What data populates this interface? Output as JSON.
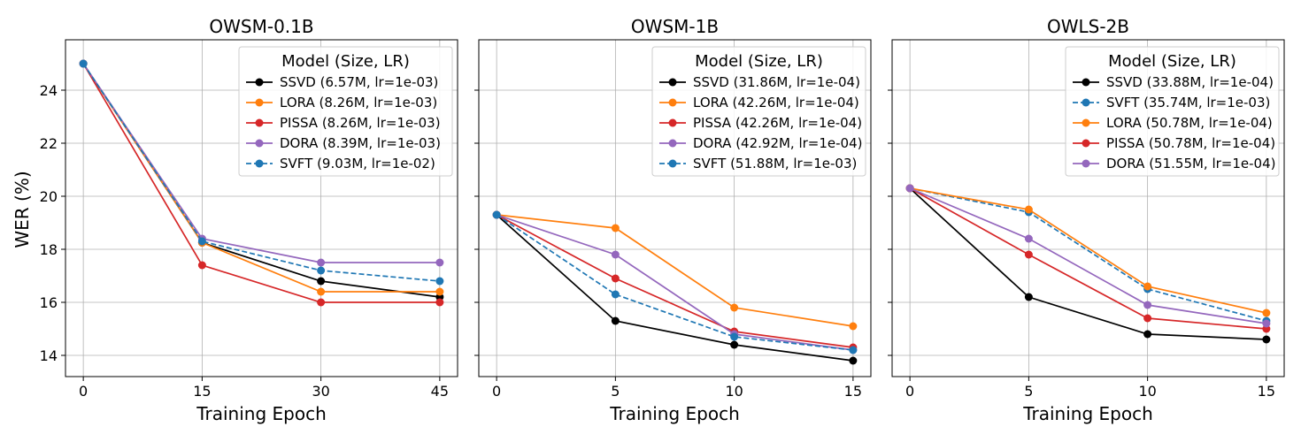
{
  "figure": {
    "ylabel": "WER (%)",
    "xlabel": "Training Epoch"
  },
  "chart_data": [
    {
      "type": "line",
      "title": "OWSM-0.1B",
      "xlabel": "Training Epoch",
      "ylabel": "WER (%)",
      "x": [
        0,
        15,
        30,
        45
      ],
      "xticks": [
        "0",
        "15",
        "30",
        "45"
      ],
      "xlim": [
        -2.25,
        47.25
      ],
      "ylim": [
        13.2,
        25.9
      ],
      "yticks": [
        "14",
        "16",
        "18",
        "20",
        "22",
        "24"
      ],
      "grid": true,
      "legend": {
        "title": "Model (Size, LR)",
        "placement": "top-right"
      },
      "series": [
        {
          "name": "SSVD (6.57M, lr=1e-03)",
          "color": "#000000",
          "dashed": false,
          "values": [
            25.0,
            18.25,
            16.8,
            16.2
          ]
        },
        {
          "name": "LORA (8.26M, lr=1e-03)",
          "color": "#ff7f0e",
          "dashed": false,
          "values": [
            25.0,
            18.25,
            16.4,
            16.4
          ]
        },
        {
          "name": "PISSA (8.26M, lr=1e-03)",
          "color": "#d62728",
          "dashed": false,
          "values": [
            25.0,
            17.4,
            16.0,
            16.0
          ]
        },
        {
          "name": "DORA (8.39M, lr=1e-03)",
          "color": "#9467bd",
          "dashed": false,
          "values": [
            25.0,
            18.4,
            17.5,
            17.5
          ]
        },
        {
          "name": "SVFT (9.03M, lr=1e-02)",
          "color": "#1f77b4",
          "dashed": true,
          "values": [
            25.0,
            18.3,
            17.2,
            16.8
          ]
        }
      ]
    },
    {
      "type": "line",
      "title": "OWSM-1B",
      "xlabel": "Training Epoch",
      "ylabel": "",
      "x": [
        0,
        5,
        10,
        15
      ],
      "xticks": [
        "0",
        "5",
        "10",
        "15"
      ],
      "xlim": [
        -0.75,
        15.75
      ],
      "ylim": [
        13.2,
        25.9
      ],
      "yticks": [
        "14",
        "16",
        "18",
        "20",
        "22",
        "24"
      ],
      "grid": true,
      "legend": {
        "title": "Model (Size, LR)",
        "placement": "top-right"
      },
      "series": [
        {
          "name": "SSVD (31.86M, lr=1e-04)",
          "color": "#000000",
          "dashed": false,
          "values": [
            19.3,
            15.3,
            14.4,
            13.8
          ]
        },
        {
          "name": "LORA (42.26M, lr=1e-04)",
          "color": "#ff7f0e",
          "dashed": false,
          "values": [
            19.3,
            18.8,
            15.8,
            15.1
          ]
        },
        {
          "name": "PISSA (42.26M, lr=1e-04)",
          "color": "#d62728",
          "dashed": false,
          "values": [
            19.3,
            16.9,
            14.9,
            14.3
          ]
        },
        {
          "name": "DORA (42.92M, lr=1e-04)",
          "color": "#9467bd",
          "dashed": false,
          "values": [
            19.3,
            17.8,
            14.8,
            14.2
          ]
        },
        {
          "name": "SVFT (51.88M, lr=1e-03)",
          "color": "#1f77b4",
          "dashed": true,
          "values": [
            19.3,
            16.3,
            14.7,
            14.2
          ]
        }
      ]
    },
    {
      "type": "line",
      "title": "OWLS-2B",
      "xlabel": "Training Epoch",
      "ylabel": "",
      "x": [
        0,
        5,
        10,
        15
      ],
      "xticks": [
        "0",
        "5",
        "10",
        "15"
      ],
      "xlim": [
        -0.75,
        15.75
      ],
      "ylim": [
        13.2,
        25.9
      ],
      "yticks": [
        "14",
        "16",
        "18",
        "20",
        "22",
        "24"
      ],
      "grid": true,
      "legend": {
        "title": "Model (Size, LR)",
        "placement": "top-right"
      },
      "series": [
        {
          "name": "SSVD (33.88M, lr=1e-04)",
          "color": "#000000",
          "dashed": false,
          "values": [
            20.3,
            16.2,
            14.8,
            14.6
          ]
        },
        {
          "name": "SVFT (35.74M, lr=1e-03)",
          "color": "#1f77b4",
          "dashed": true,
          "values": [
            20.3,
            19.4,
            16.5,
            15.3
          ]
        },
        {
          "name": "LORA (50.78M, lr=1e-04)",
          "color": "#ff7f0e",
          "dashed": false,
          "values": [
            20.3,
            19.5,
            16.6,
            15.6
          ]
        },
        {
          "name": "PISSA (50.78M, lr=1e-04)",
          "color": "#d62728",
          "dashed": false,
          "values": [
            20.3,
            17.8,
            15.4,
            15.0
          ]
        },
        {
          "name": "DORA (51.55M, lr=1e-04)",
          "color": "#9467bd",
          "dashed": false,
          "values": [
            20.3,
            18.4,
            15.9,
            15.2
          ]
        }
      ]
    }
  ]
}
